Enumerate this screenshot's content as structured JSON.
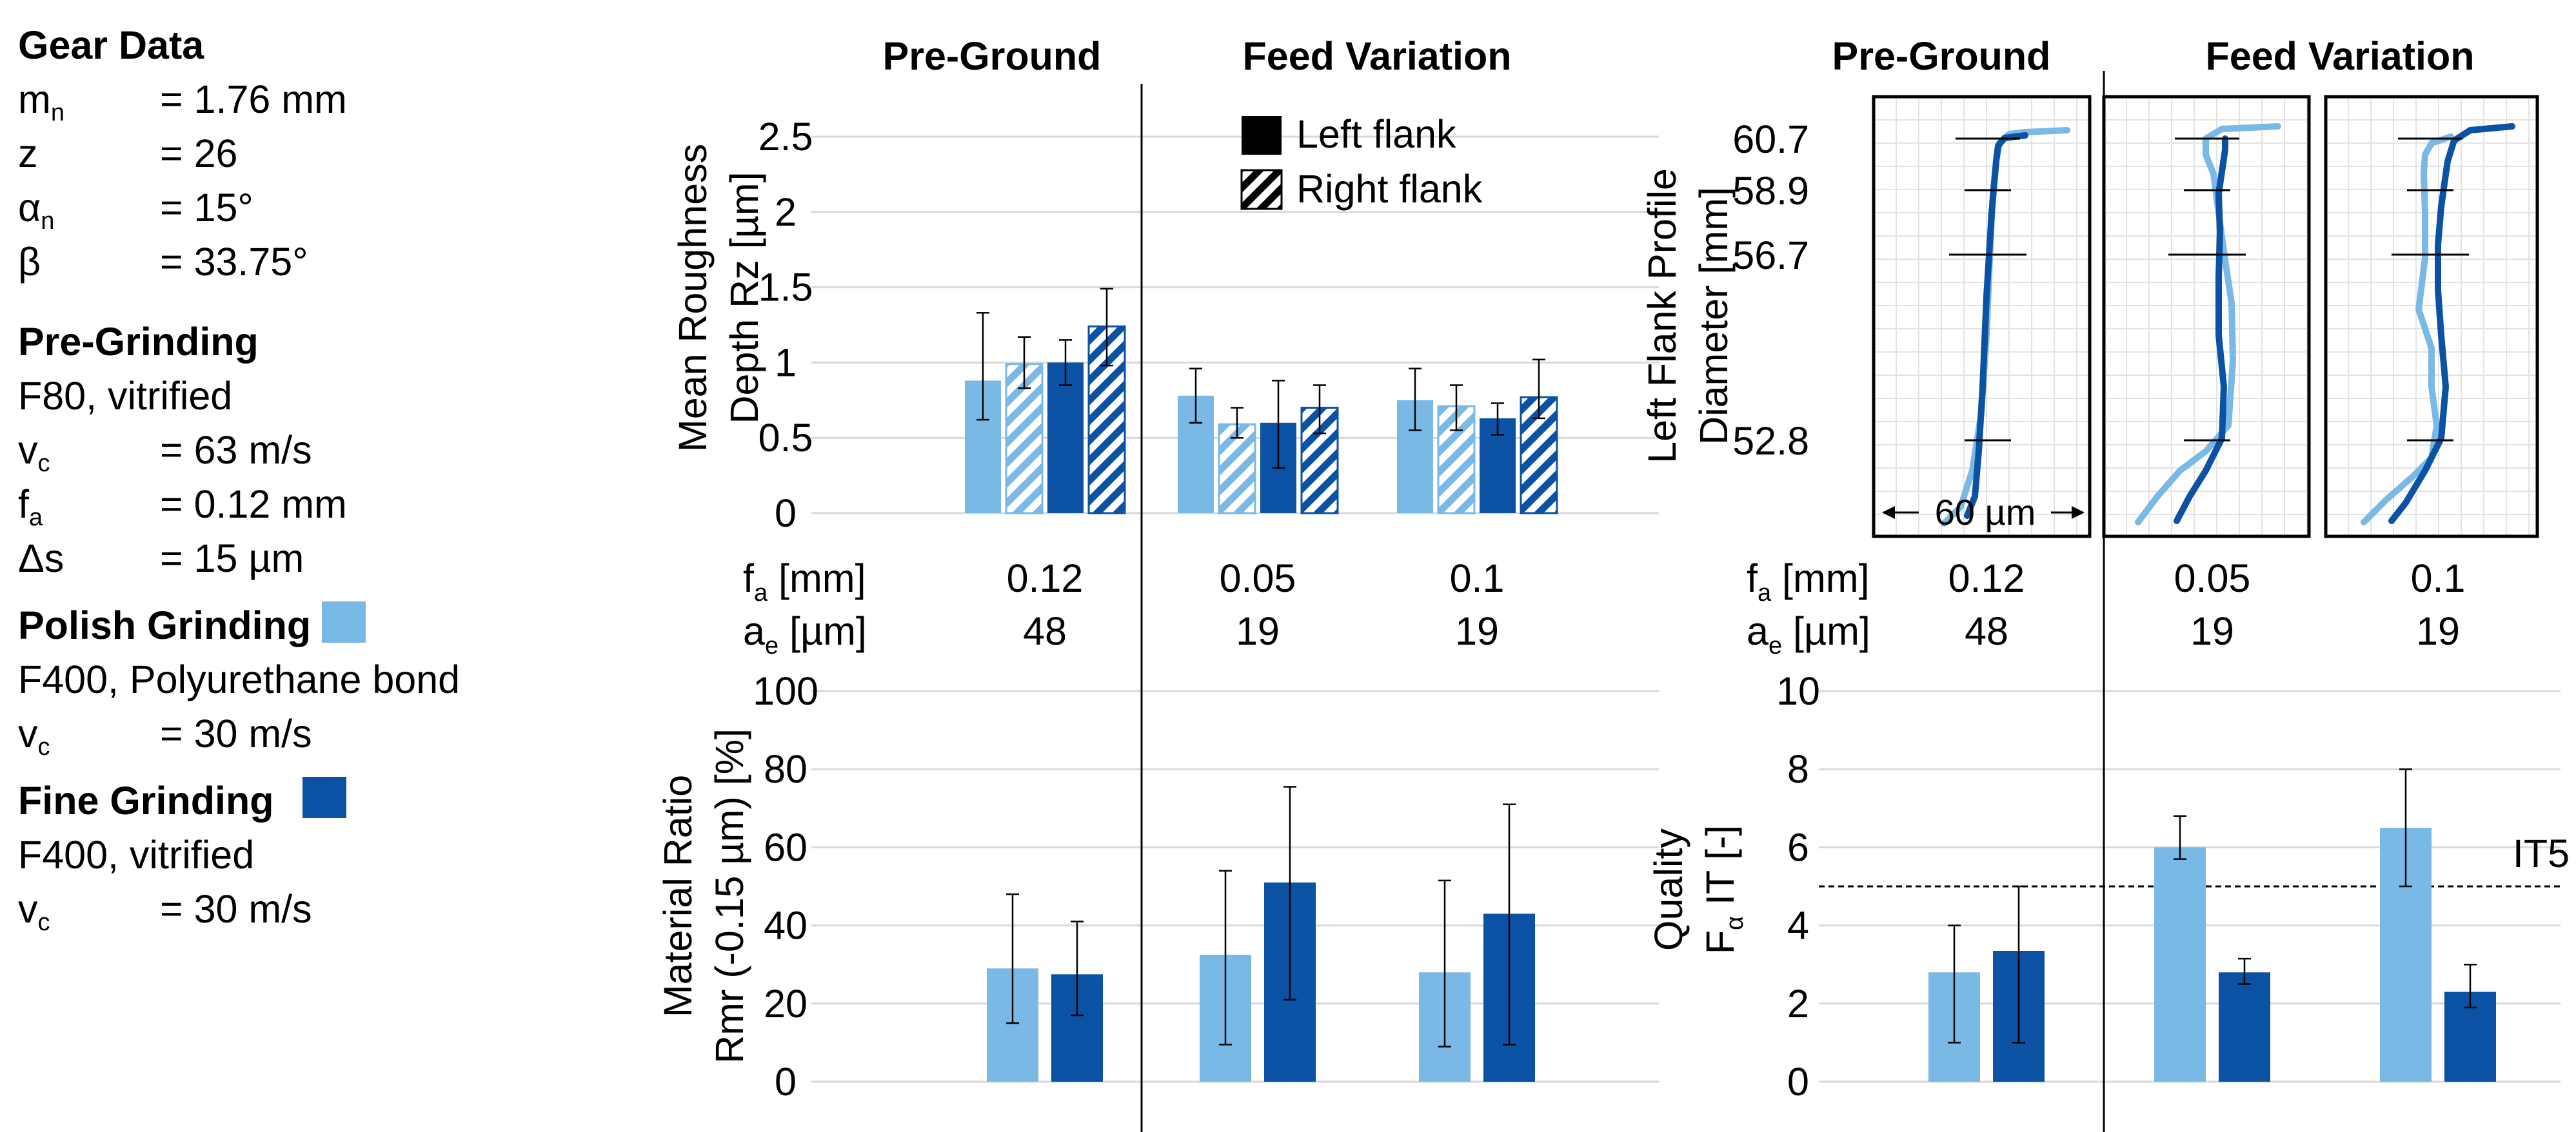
{
  "colors": {
    "polish": "#7ab8e6",
    "fine": "#0b52a5",
    "grid": "#d9d9d9"
  },
  "info_panel": {
    "gear_heading": "Gear Data",
    "gear_rows": [
      {
        "sym": "m",
        "sub": "n",
        "val": "= 1.76 mm"
      },
      {
        "sym": "z",
        "sub": "",
        "val": "= 26"
      },
      {
        "sym": "α",
        "sub": "n",
        "val": "= 15°"
      },
      {
        "sym": "β",
        "sub": "",
        "val": "= 33.75°"
      }
    ],
    "pre_heading": "Pre-Grinding",
    "pre_spec": "F80, vitrified",
    "pre_rows": [
      {
        "sym": "v",
        "sub": "c",
        "val": "= 63 m/s"
      },
      {
        "sym": "f",
        "sub": "a",
        "val": "= 0.12 mm"
      },
      {
        "sym": "Δs",
        "sub": "",
        "val": "= 15 µm"
      }
    ],
    "polish_heading": "Polish Grinding",
    "polish_spec": "F400, Polyurethane bond",
    "polish_rows": [
      {
        "sym": "v",
        "sub": "c",
        "val": "= 30 m/s"
      }
    ],
    "fine_heading": "Fine Grinding",
    "fine_spec": "F400, vitrified",
    "fine_rows": [
      {
        "sym": "v",
        "sub": "c",
        "val": "= 30 m/s"
      }
    ]
  },
  "chart_data": [
    {
      "id": "roughness",
      "type": "bar",
      "title_groups": [
        "Pre-Ground",
        "Feed Variation"
      ],
      "ylabel": [
        "Mean Roughness",
        "Depth Rz [µm]"
      ],
      "ylim": [
        0,
        2.5
      ],
      "yticks": [
        "0",
        "0.5",
        "1",
        "1.5",
        "2",
        "2.5"
      ],
      "legend": [
        "Left flank",
        "Right flank"
      ],
      "categories": [
        {
          "fa": "0.12",
          "ae": "48"
        },
        {
          "fa": "0.05",
          "ae": "19"
        },
        {
          "fa": "0.1",
          "ae": "19"
        }
      ],
      "series": [
        {
          "name": "Polish Grinding – Left flank",
          "values": [
            0.88,
            0.78,
            0.75
          ],
          "err_low": [
            0.62,
            0.6,
            0.55
          ],
          "err_high": [
            1.33,
            0.96,
            0.96
          ]
        },
        {
          "name": "Polish Grinding – Right flank",
          "values": [
            0.99,
            0.59,
            0.71
          ],
          "err_low": [
            0.83,
            0.5,
            0.55
          ],
          "err_high": [
            1.17,
            0.7,
            0.85
          ]
        },
        {
          "name": "Fine Grinding – Left flank",
          "values": [
            1.0,
            0.6,
            0.63
          ],
          "err_low": [
            0.85,
            0.3,
            0.52
          ],
          "err_high": [
            1.15,
            0.88,
            0.73
          ]
        },
        {
          "name": "Fine Grinding – Right flank",
          "values": [
            1.24,
            0.7,
            0.77
          ],
          "err_low": [
            0.98,
            0.53,
            0.63
          ],
          "err_high": [
            1.49,
            0.85,
            1.02
          ]
        }
      ],
      "x_row_labels": [
        {
          "sym": "f",
          "sub": "a",
          "unit": "[mm]"
        },
        {
          "sym": "a",
          "sub": "e",
          "unit": "[µm]"
        }
      ]
    },
    {
      "id": "material_ratio",
      "type": "bar",
      "ylabel": [
        "Material Ratio",
        "Rmr (-0.15 µm) [%]"
      ],
      "ylim": [
        0,
        100
      ],
      "yticks": [
        "0",
        "20",
        "40",
        "60",
        "80",
        "100"
      ],
      "series": [
        {
          "name": "Polish Grinding",
          "values": [
            29,
            32.5,
            28
          ],
          "err_low": [
            15,
            9.5,
            9
          ],
          "err_high": [
            48,
            54,
            51.5
          ]
        },
        {
          "name": "Fine Grinding",
          "values": [
            27.5,
            51,
            43
          ],
          "err_low": [
            17,
            21,
            9.5
          ],
          "err_high": [
            41,
            75.5,
            71
          ]
        }
      ]
    },
    {
      "id": "profile",
      "type": "line",
      "title_groups": [
        "Pre-Ground",
        "Feed Variation"
      ],
      "ylabel": [
        "Left Flank Profile",
        "Diameter [mm]"
      ],
      "diameter_ticks": [
        "60.7",
        "58.9",
        "56.7",
        "52.8"
      ],
      "scale_label": "60 µm",
      "categories": [
        {
          "fa": "0.12",
          "ae": "48"
        },
        {
          "fa": "0.05",
          "ae": "19"
        },
        {
          "fa": "0.1",
          "ae": "19"
        }
      ],
      "x_row_labels": [
        {
          "sym": "f",
          "sub": "a",
          "unit": "[mm]"
        },
        {
          "sym": "a",
          "sub": "e",
          "unit": "[µm]"
        }
      ]
    },
    {
      "id": "quality",
      "type": "bar",
      "ylabel": [
        "Quality",
        "F",
        "α",
        " IT [-]"
      ],
      "ylim": [
        0,
        10
      ],
      "yticks": [
        "0",
        "2",
        "4",
        "6",
        "8",
        "10"
      ],
      "reference_line": {
        "value": 5,
        "label": "IT5"
      },
      "series": [
        {
          "name": "Polish Grinding",
          "values": [
            2.8,
            6.0,
            6.5
          ],
          "err_low": [
            1.0,
            5.7,
            5.0
          ],
          "err_high": [
            4.0,
            6.8,
            8.0
          ]
        },
        {
          "name": "Fine Grinding",
          "values": [
            3.35,
            2.8,
            2.3
          ],
          "err_low": [
            1.0,
            2.5,
            1.9
          ],
          "err_high": [
            5.0,
            3.15,
            3.0
          ]
        }
      ]
    }
  ]
}
